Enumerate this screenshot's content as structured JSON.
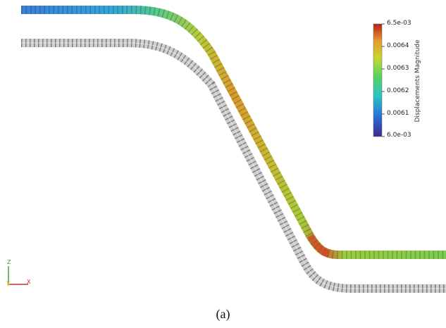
{
  "colorbar": {
    "title": "Displacements Magnitude",
    "min_label": "6.0e-03",
    "max_label": "6.5e-03",
    "ticks": [
      "0.0064",
      "0.0063",
      "0.0062",
      "0.0061"
    ],
    "tick_values": [
      0.0064,
      0.0063,
      0.0062,
      0.0061
    ],
    "range": [
      0.006,
      0.0065
    ],
    "colormap": [
      "#3b4cc0",
      "#2a8fd6",
      "#29c4c6",
      "#5bd35b",
      "#c8d631",
      "#e89a2a",
      "#c0281c"
    ]
  },
  "orientation_axes": {
    "z_label": "Z",
    "y_label": "Y",
    "x_label": "X",
    "z_color": "#2ca02c",
    "y_color": "#e6c000",
    "x_color": "#d62728"
  },
  "models": {
    "deformed_colormap": "Rainbow",
    "undeformed_color": "#c8c8c8"
  },
  "caption": "(a)"
}
